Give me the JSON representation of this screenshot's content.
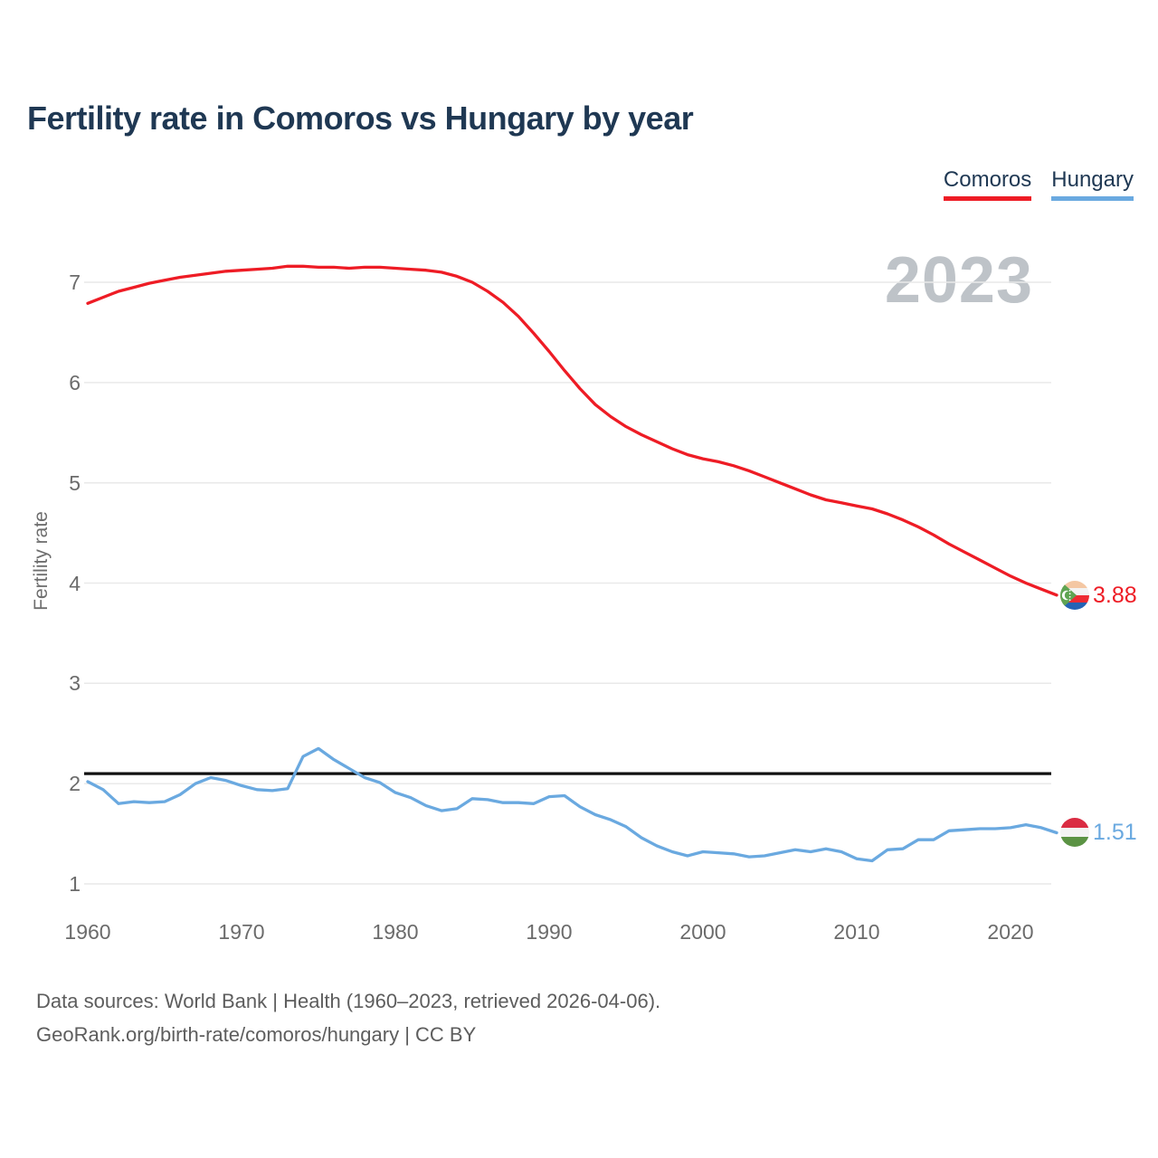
{
  "title": "Fertility rate in Comoros vs Hungary by year",
  "watermark": "2023",
  "legend": [
    {
      "label": "Comoros",
      "color": "#ee1c25"
    },
    {
      "label": "Hungary",
      "color": "#6aa9e0"
    }
  ],
  "y_axis": {
    "label": "Fertility rate",
    "ticks": [
      7,
      6,
      5,
      4,
      3,
      2,
      1
    ]
  },
  "x_axis": {
    "ticks": [
      1960,
      1970,
      1980,
      1990,
      2000,
      2010,
      2020
    ]
  },
  "end_labels": {
    "comoros": {
      "value": "3.88",
      "color": "#ee1c25"
    },
    "hungary": {
      "value": "1.51",
      "color": "#6aa9e0"
    }
  },
  "footer": {
    "line1": "Data sources: World Bank | Health (1960–2023, retrieved 2026-04-06).",
    "line2": "GeoRank.org/birth-rate/comoros/hungary | CC BY"
  },
  "chart_data": {
    "type": "line",
    "title": "Fertility rate in Comoros vs Hungary by year",
    "xlabel": "",
    "ylabel": "Fertility rate",
    "xlim": [
      1960,
      2023
    ],
    "ylim": [
      1,
      7
    ],
    "grid": "horizontal",
    "legend_position": "top-right",
    "reference_line": {
      "value": 2.1,
      "color": "#111111"
    },
    "x": [
      1960,
      1961,
      1962,
      1963,
      1964,
      1965,
      1966,
      1967,
      1968,
      1969,
      1970,
      1971,
      1972,
      1973,
      1974,
      1975,
      1976,
      1977,
      1978,
      1979,
      1980,
      1981,
      1982,
      1983,
      1984,
      1985,
      1986,
      1987,
      1988,
      1989,
      1990,
      1991,
      1992,
      1993,
      1994,
      1995,
      1996,
      1997,
      1998,
      1999,
      2000,
      2001,
      2002,
      2003,
      2004,
      2005,
      2006,
      2007,
      2008,
      2009,
      2010,
      2011,
      2012,
      2013,
      2014,
      2015,
      2016,
      2017,
      2018,
      2019,
      2020,
      2021,
      2022,
      2023
    ],
    "series": [
      {
        "name": "Comoros",
        "color": "#ee1c25",
        "final_value": 3.88,
        "values": [
          6.79,
          6.85,
          6.91,
          6.95,
          6.99,
          7.02,
          7.05,
          7.07,
          7.09,
          7.11,
          7.12,
          7.13,
          7.14,
          7.16,
          7.16,
          7.15,
          7.15,
          7.14,
          7.15,
          7.15,
          7.14,
          7.13,
          7.12,
          7.1,
          7.06,
          7.0,
          6.91,
          6.8,
          6.66,
          6.49,
          6.31,
          6.12,
          5.94,
          5.78,
          5.66,
          5.56,
          5.48,
          5.41,
          5.34,
          5.28,
          5.24,
          5.21,
          5.17,
          5.12,
          5.06,
          5.0,
          4.94,
          4.88,
          4.83,
          4.8,
          4.77,
          4.74,
          4.69,
          4.63,
          4.56,
          4.48,
          4.39,
          4.31,
          4.23,
          4.15,
          4.07,
          4.0,
          3.94,
          3.88
        ]
      },
      {
        "name": "Hungary",
        "color": "#6aa9e0",
        "final_value": 1.51,
        "values": [
          2.02,
          1.94,
          1.8,
          1.82,
          1.81,
          1.82,
          1.89,
          2.0,
          2.06,
          2.03,
          1.98,
          1.94,
          1.93,
          1.95,
          2.27,
          2.35,
          2.24,
          2.15,
          2.06,
          2.01,
          1.91,
          1.86,
          1.78,
          1.73,
          1.75,
          1.85,
          1.84,
          1.81,
          1.81,
          1.8,
          1.87,
          1.88,
          1.77,
          1.69,
          1.64,
          1.57,
          1.46,
          1.38,
          1.32,
          1.28,
          1.32,
          1.31,
          1.3,
          1.27,
          1.28,
          1.31,
          1.34,
          1.32,
          1.35,
          1.32,
          1.25,
          1.23,
          1.34,
          1.35,
          1.44,
          1.44,
          1.53,
          1.54,
          1.55,
          1.55,
          1.56,
          1.59,
          1.56,
          1.51
        ]
      }
    ]
  }
}
